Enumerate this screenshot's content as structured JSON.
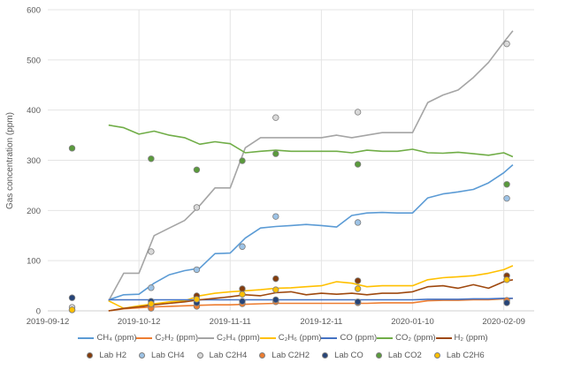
{
  "chart_data": {
    "type": "line",
    "title": "",
    "xlabel": "",
    "ylabel": "Gas concentration (ppm)",
    "ylim": [
      0,
      600
    ],
    "yticks": [
      0,
      100,
      200,
      300,
      400,
      500,
      600
    ],
    "xlim": [
      "2019-09-12",
      "2020-02-19"
    ],
    "xticks": [
      "2019-09-12",
      "2019-10-12",
      "2019-11-11",
      "2019-12-11",
      "2020-01-10",
      "2020-02-09"
    ],
    "grid": true,
    "legend_placement": "bottom",
    "x": [
      "2019-10-02",
      "2019-10-07",
      "2019-10-12",
      "2019-10-17",
      "2019-10-22",
      "2019-10-27",
      "2019-11-01",
      "2019-11-06",
      "2019-11-11",
      "2019-11-16",
      "2019-11-21",
      "2019-11-26",
      "2019-12-01",
      "2019-12-06",
      "2019-12-11",
      "2019-12-16",
      "2019-12-21",
      "2019-12-26",
      "2019-12-31",
      "2020-01-05",
      "2020-01-10",
      "2020-01-15",
      "2020-01-20",
      "2020-01-25",
      "2020-01-30",
      "2020-02-04",
      "2020-02-09",
      "2020-02-12"
    ],
    "series": [
      {
        "name": "CH₄ (ppm)",
        "color": "#5b9bd5",
        "values": [
          22,
          32,
          33,
          55,
          72,
          80,
          85,
          114,
          115,
          145,
          165,
          168,
          170,
          172,
          170,
          167,
          190,
          195,
          196,
          195,
          195,
          225,
          233,
          237,
          242,
          255,
          275,
          291
        ]
      },
      {
        "name": "C₂H₂ (ppm)",
        "color": "#ed7d31",
        "values": [
          0,
          4,
          6,
          8,
          9,
          10,
          11,
          12,
          12,
          13,
          14,
          15,
          15,
          15,
          15,
          15,
          15,
          15,
          16,
          16,
          16,
          20,
          21,
          21,
          22,
          22,
          24,
          25
        ]
      },
      {
        "name": "C₂H₄ (ppm)",
        "color": "#a5a5a5",
        "values": [
          20,
          75,
          75,
          150,
          165,
          180,
          210,
          245,
          245,
          325,
          345,
          345,
          345,
          345,
          345,
          350,
          345,
          350,
          355,
          355,
          355,
          415,
          430,
          440,
          465,
          495,
          535,
          558
        ]
      },
      {
        "name": "C₂H₆ (ppm)",
        "color": "#ffc000",
        "values": [
          20,
          5,
          10,
          14,
          18,
          20,
          30,
          35,
          38,
          40,
          42,
          45,
          46,
          48,
          50,
          58,
          55,
          48,
          50,
          50,
          50,
          62,
          66,
          68,
          70,
          75,
          82,
          90
        ]
      },
      {
        "name": "CO (ppm)",
        "color": "#4472c4",
        "values": [
          22,
          22,
          22,
          22,
          22,
          22,
          22,
          22,
          22,
          22,
          22,
          22,
          22,
          22,
          22,
          22,
          22,
          22,
          22,
          22,
          22,
          23,
          23,
          23,
          24,
          24,
          25,
          25
        ]
      },
      {
        "name": "CO₂ (ppm)",
        "color": "#70ad47",
        "values": [
          370,
          365,
          352,
          358,
          350,
          345,
          332,
          337,
          333,
          315,
          318,
          320,
          318,
          318,
          318,
          318,
          315,
          320,
          318,
          318,
          322,
          315,
          314,
          316,
          313,
          310,
          315,
          307
        ]
      },
      {
        "name": "H₂ (ppm)",
        "color": "#9e480e",
        "values": [
          0,
          5,
          8,
          12,
          15,
          18,
          22,
          25,
          28,
          32,
          30,
          36,
          38,
          32,
          35,
          33,
          35,
          32,
          35,
          35,
          38,
          48,
          50,
          45,
          52,
          45,
          58,
          62
        ]
      }
    ],
    "lab_x": [
      "2019-09-20",
      "2019-10-16",
      "2019-10-31",
      "2019-11-15",
      "2019-11-26",
      "2019-12-23",
      "2020-02-10"
    ],
    "lab_series": [
      {
        "name": "Lab H2",
        "color": "#843c0c",
        "values": [
          2,
          10,
          30,
          44,
          64,
          60,
          70
        ]
      },
      {
        "name": "Lab CH4",
        "color": "#9dc3e6",
        "values": [
          null,
          46,
          82,
          128,
          188,
          176,
          224
        ]
      },
      {
        "name": "Lab C2H4",
        "color": "#d9d9d9",
        "values": [
          7,
          118,
          206,
          null,
          385,
          396,
          532
        ]
      },
      {
        "name": "Lab C2H2",
        "color": "#ed7d31",
        "values": [
          null,
          5,
          9,
          14,
          18,
          16,
          21
        ]
      },
      {
        "name": "Lab CO",
        "color": "#264478",
        "values": [
          26,
          19,
          16,
          19,
          22,
          18,
          16
        ]
      },
      {
        "name": "Lab CO2",
        "color": "#5a9a3c",
        "values": [
          324,
          303,
          281,
          299,
          313,
          292,
          252
        ]
      },
      {
        "name": "Lab C2H6",
        "color": "#ffc000",
        "values": [
          2,
          14,
          23,
          33,
          42,
          44,
          62
        ]
      }
    ]
  }
}
